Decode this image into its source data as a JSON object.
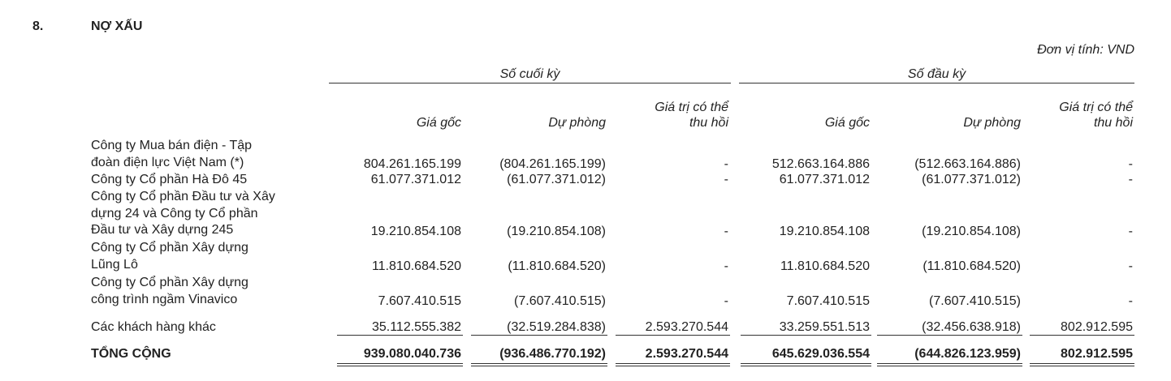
{
  "section": {
    "number": "8.",
    "title": "NỢ XẤU"
  },
  "unit": "Đơn vị tính: VND",
  "groups": [
    "Số cuối kỳ",
    "Số đầu kỳ"
  ],
  "columns": [
    [
      "Giá gốc"
    ],
    [
      "Dự phòng"
    ],
    [
      "Giá trị có thể",
      "thu hồi"
    ],
    [
      "Giá gốc"
    ],
    [
      "Dự phòng"
    ],
    [
      "Giá trị có thể",
      "thu hồi"
    ]
  ],
  "rows": [
    {
      "label_lines": [
        "Công ty Mua bán điện - Tập",
        "đoàn điện lực Việt Nam (*)"
      ],
      "values": [
        "804.261.165.199",
        "(804.261.165.199)",
        "-",
        "512.663.164.886",
        "(512.663.164.886)",
        "-"
      ]
    },
    {
      "label_lines": [
        "Công ty Cổ phần Hà Đô 45"
      ],
      "values": [
        "61.077.371.012",
        "(61.077.371.012)",
        "-",
        "61.077.371.012",
        "(61.077.371.012)",
        "-"
      ]
    },
    {
      "label_lines": [
        "Công ty Cổ phần Đầu tư và Xây",
        "dựng 24 và Công ty Cổ phần",
        "Đầu tư và Xây dựng 245"
      ],
      "values": [
        "19.210.854.108",
        "(19.210.854.108)",
        "-",
        "19.210.854.108",
        "(19.210.854.108)",
        "-"
      ]
    },
    {
      "label_lines": [
        "Công ty Cổ phần Xây dựng",
        "Lũng Lô"
      ],
      "values": [
        "11.810.684.520",
        "(11.810.684.520)",
        "-",
        "11.810.684.520",
        "(11.810.684.520)",
        "-"
      ]
    },
    {
      "label_lines": [
        "Công ty Cổ phần Xây dựng",
        "công trình ngầm Vinavico"
      ],
      "values": [
        "7.607.410.515",
        "(7.607.410.515)",
        "-",
        "7.607.410.515",
        "(7.607.410.515)",
        "-"
      ]
    },
    {
      "label_lines": [
        "Các khách hàng khác"
      ],
      "values": [
        "35.112.555.382",
        "(32.519.284.838)",
        "2.593.270.544",
        "33.259.551.513",
        "(32.456.638.918)",
        "802.912.595"
      ]
    }
  ],
  "total": {
    "label": "TỔNG CỘNG",
    "values": [
      "939.080.040.736",
      "(936.486.770.192)",
      "2.593.270.544",
      "645.629.036.554",
      "(644.826.123.959)",
      "802.912.595"
    ]
  }
}
